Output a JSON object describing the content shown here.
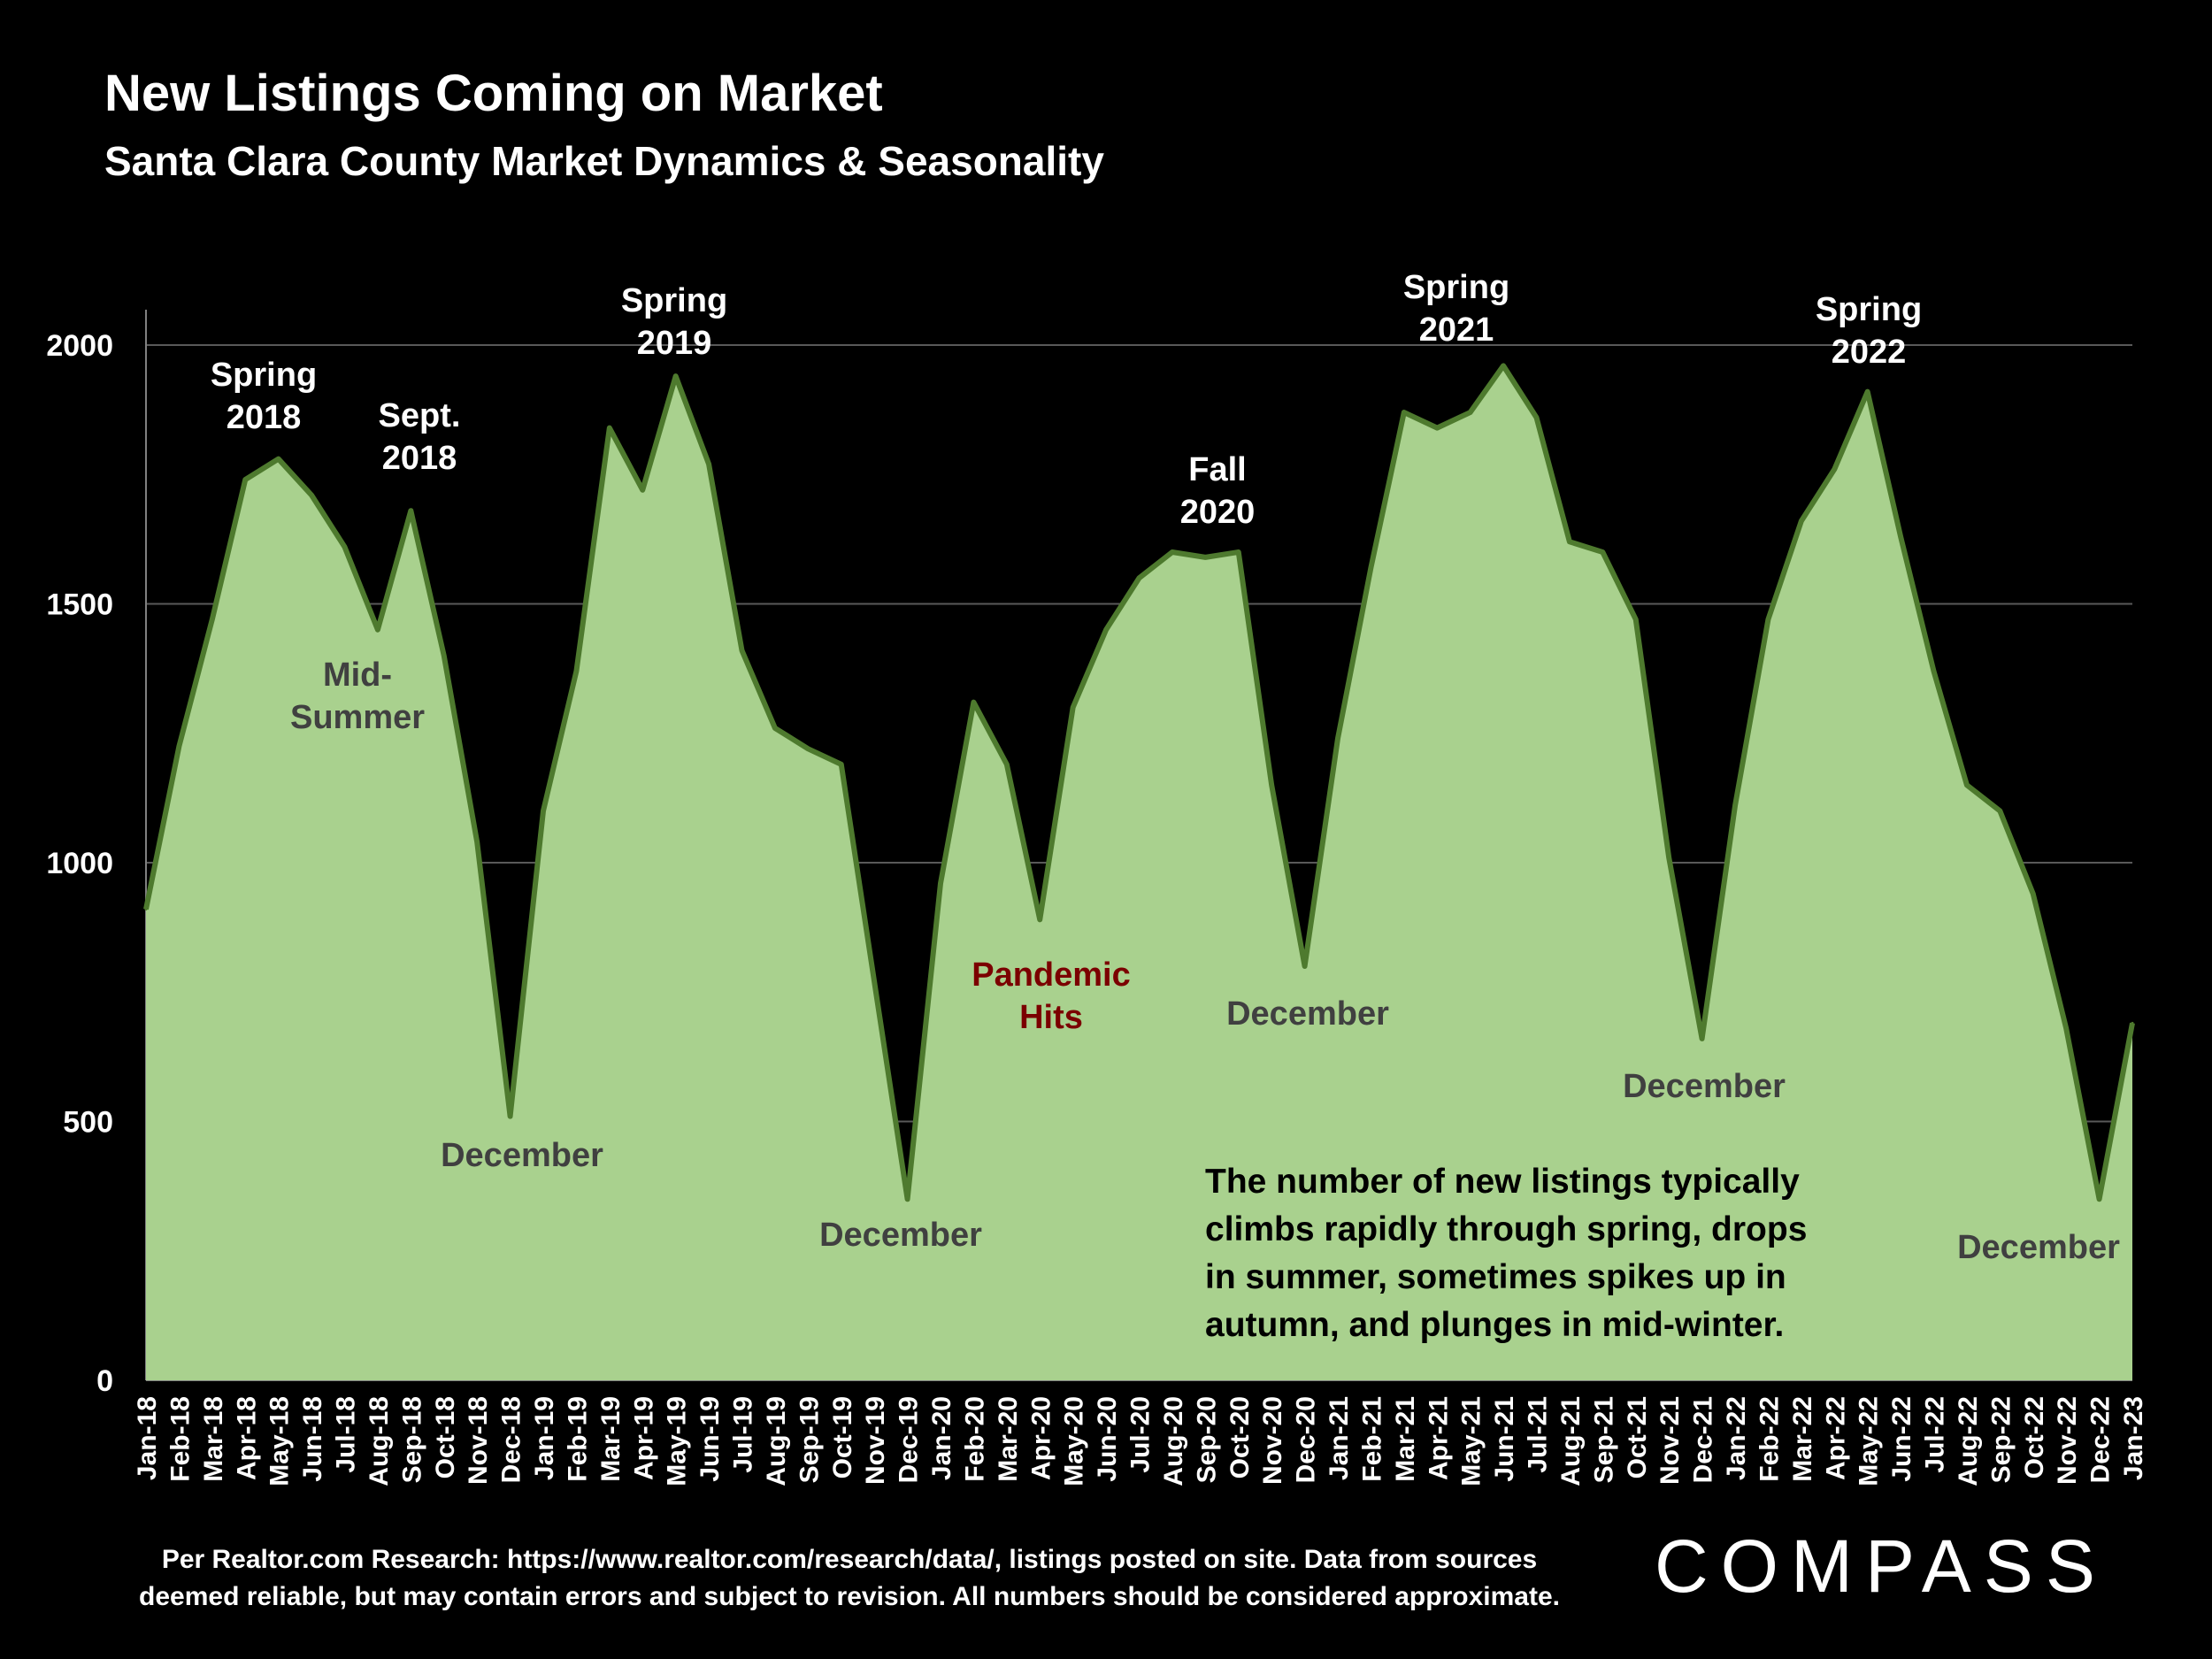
{
  "title": "New Listings Coming on Market",
  "subtitle": "Santa Clara County Market Dynamics & Seasonality",
  "source_note": [
    "Per Realtor.com Research:  https://www.realtor.com/research/data/, listings posted on site. Data from sources",
    "deemed reliable, but may contain errors and subject to revision. All numbers should be considered approximate."
  ],
  "logo_text": "COMPASS",
  "callout_lines": [
    "The number of new listings typically",
    "climbs rapidly through spring, drops",
    "in summer, sometimes spikes up in",
    "autumn, and plunges in mid-winter."
  ],
  "colors": {
    "background": "#000000",
    "area_fill": "#a9d18e",
    "area_line": "#4e7a2e",
    "annotation_gray": "#404040",
    "annotation_red": "#7b0000",
    "gridline": "#595959"
  },
  "chart_data": {
    "type": "area",
    "x": [
      "Jan-18",
      "Feb-18",
      "Mar-18",
      "Apr-18",
      "May-18",
      "Jun-18",
      "Jul-18",
      "Aug-18",
      "Sep-18",
      "Oct-18",
      "Nov-18",
      "Dec-18",
      "Jan-19",
      "Feb-19",
      "Mar-19",
      "Apr-19",
      "May-19",
      "Jun-19",
      "Jul-19",
      "Aug-19",
      "Sep-19",
      "Oct-19",
      "Nov-19",
      "Dec-19",
      "Jan-20",
      "Feb-20",
      "Mar-20",
      "Apr-20",
      "May-20",
      "Jun-20",
      "Jul-20",
      "Aug-20",
      "Sep-20",
      "Oct-20",
      "Nov-20",
      "Dec-20",
      "Jan-21",
      "Feb-21",
      "Mar-21",
      "Apr-21",
      "May-21",
      "Jun-21",
      "Jul-21",
      "Aug-21",
      "Sep-21",
      "Oct-21",
      "Nov-21",
      "Dec-21",
      "Jan-22",
      "Feb-22",
      "Mar-22",
      "Apr-22",
      "May-22",
      "Jun-22",
      "Jul-22",
      "Aug-22",
      "Sep-22",
      "Oct-22",
      "Nov-22",
      "Dec-22",
      "Jan-23"
    ],
    "values": [
      910,
      1225,
      1470,
      1740,
      1780,
      1710,
      1610,
      1450,
      1680,
      1400,
      1040,
      510,
      1100,
      1370,
      1840,
      1720,
      1940,
      1770,
      1410,
      1260,
      1220,
      1190,
      770,
      350,
      960,
      1310,
      1190,
      890,
      1300,
      1450,
      1550,
      1600,
      1590,
      1600,
      1150,
      800,
      1240,
      1570,
      1870,
      1840,
      1870,
      1960,
      1860,
      1620,
      1600,
      1470,
      1010,
      660,
      1110,
      1470,
      1660,
      1760,
      1910,
      1630,
      1370,
      1150,
      1100,
      940,
      680,
      350,
      690
    ],
    "yticks": [
      0,
      500,
      1000,
      1500,
      2000
    ],
    "ylim": [
      0,
      2070
    ],
    "grid": true,
    "annotations": [
      {
        "lines": [
          "Spring",
          "2018"
        ],
        "at": "Apr-18",
        "color": "white"
      },
      {
        "lines": [
          "Sept.",
          "2018"
        ],
        "at": "Sep-18",
        "color": "white"
      },
      {
        "lines": [
          "Mid-",
          "Summer"
        ],
        "at": "Jul-18",
        "color": "gray"
      },
      {
        "lines": [
          "December"
        ],
        "at": "Dec-18",
        "color": "gray"
      },
      {
        "lines": [
          "Spring",
          "2019"
        ],
        "at": "May-19",
        "color": "white"
      },
      {
        "lines": [
          "December"
        ],
        "at": "Dec-19",
        "color": "gray"
      },
      {
        "lines": [
          "Pandemic",
          "Hits"
        ],
        "at": "Apr-20",
        "color": "red"
      },
      {
        "lines": [
          "Fall",
          "2020"
        ],
        "at": "Sep-20",
        "color": "white"
      },
      {
        "lines": [
          "December"
        ],
        "at": "Dec-20",
        "color": "gray"
      },
      {
        "lines": [
          "Spring",
          "2021"
        ],
        "at": "Jun-21",
        "color": "white"
      },
      {
        "lines": [
          "December"
        ],
        "at": "Dec-21",
        "color": "gray"
      },
      {
        "lines": [
          "Spring",
          "2022"
        ],
        "at": "May-22",
        "color": "white"
      },
      {
        "lines": [
          "December"
        ],
        "at": "Dec-22",
        "color": "gray"
      }
    ]
  }
}
